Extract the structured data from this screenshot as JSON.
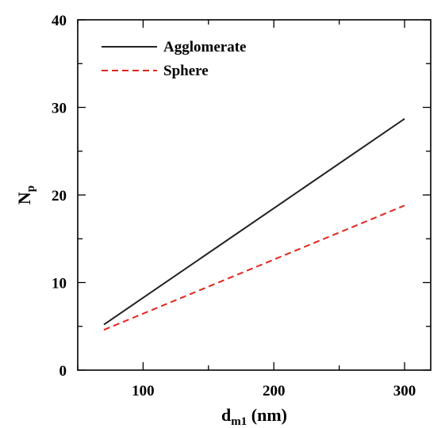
{
  "chart_data": {
    "type": "line",
    "xlabel": {
      "main": "d",
      "sub": "m1",
      "suffix": " (nm)"
    },
    "ylabel": {
      "main": "N",
      "sub": "p"
    },
    "xlim": [
      50,
      320
    ],
    "ylim": [
      0,
      40
    ],
    "xticks": [
      100,
      200,
      300
    ],
    "yticks": [
      0,
      10,
      20,
      30,
      40
    ],
    "x_minor_ticks": [
      50,
      150,
      250
    ],
    "y_minor_ticks": [
      5,
      15,
      25,
      35
    ],
    "grid": false,
    "legend_position": "top-left",
    "series": [
      {
        "name": "Agglomerate",
        "color": "#222222",
        "dash": "solid",
        "x": [
          70,
          300
        ],
        "y": [
          5.2,
          28.7
        ]
      },
      {
        "name": "Sphere",
        "color": "#e0261c",
        "dash": "dashed",
        "x": [
          70,
          300
        ],
        "y": [
          4.6,
          18.8
        ]
      }
    ]
  }
}
